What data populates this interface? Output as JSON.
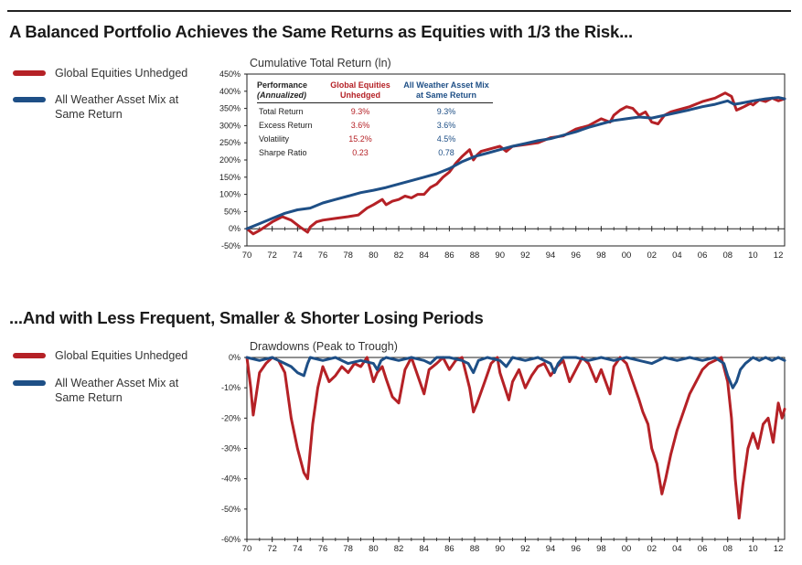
{
  "colors": {
    "equities": "#b52126",
    "allweather": "#1e4f86",
    "axis": "#222222"
  },
  "top": {
    "heading": "A Balanced Portfolio Achieves the Same Returns as Equities with 1/3 the Risk...",
    "legend": [
      "Global Equities Unhedged",
      "All Weather Asset Mix at Same Return"
    ]
  },
  "bottom": {
    "heading": "...And with Less Frequent, Smaller & Shorter Losing Periods",
    "legend": [
      "Global Equities Unhedged",
      "All Weather Asset Mix at Same Return"
    ]
  },
  "perf_table": {
    "headers": [
      "Performance (Annualized)",
      "Global Equities Unhedged",
      "All Weather Asset Mix at Same Return"
    ],
    "header_lines": [
      [
        "Performance",
        "(Annualized)"
      ],
      [
        "Global Equities",
        "Unhedged"
      ],
      [
        "All Weather Asset Mix",
        "at Same Return"
      ]
    ],
    "rows": [
      {
        "label": "Total Return",
        "equities": "9.3%",
        "allweather": "9.3%"
      },
      {
        "label": "Excess Return",
        "equities": "3.6%",
        "allweather": "3.6%"
      },
      {
        "label": "Volatility",
        "equities": "15.2%",
        "allweather": "4.5%"
      },
      {
        "label": "Sharpe Ratio",
        "equities": "0.23",
        "allweather": "0.78"
      }
    ]
  },
  "chart_data": [
    {
      "type": "line",
      "title": "Cumulative Total Return (ln)",
      "xlabel": "",
      "ylabel": "",
      "xlim": [
        1970,
        2012.5
      ],
      "ylim": [
        -50,
        450
      ],
      "yticks": [
        -50,
        0,
        50,
        100,
        150,
        200,
        250,
        300,
        350,
        400,
        450
      ],
      "ytick_labels": [
        "-50%",
        "0%",
        "50%",
        "100%",
        "150%",
        "200%",
        "250%",
        "300%",
        "350%",
        "400%",
        "450%"
      ],
      "xticks": [
        1970,
        1972,
        1974,
        1976,
        1978,
        1980,
        1982,
        1984,
        1986,
        1988,
        1990,
        1992,
        1994,
        1996,
        1998,
        2000,
        2002,
        2004,
        2006,
        2008,
        2010,
        2012
      ],
      "xtick_labels": [
        "70",
        "72",
        "74",
        "76",
        "78",
        "80",
        "82",
        "84",
        "86",
        "88",
        "90",
        "92",
        "94",
        "96",
        "98",
        "00",
        "02",
        "04",
        "06",
        "08",
        "10",
        "12"
      ],
      "series": [
        {
          "name": "Global Equities Unhedged",
          "x": [
            1970,
            1970.5,
            1971,
            1972,
            1972.8,
            1973.5,
            1974.2,
            1974.8,
            1975,
            1975.5,
            1976,
            1977,
            1978,
            1978.8,
            1979.5,
            1980,
            1980.7,
            1981,
            1981.5,
            1982,
            1982.5,
            1983,
            1983.5,
            1984,
            1984.5,
            1985,
            1985.5,
            1986,
            1986.5,
            1987,
            1987.6,
            1987.9,
            1988.2,
            1988.5,
            1989,
            1989.5,
            1990,
            1990.5,
            1991,
            1992,
            1993,
            1994,
            1995,
            1996,
            1997,
            1998,
            1998.7,
            1999,
            1999.5,
            2000,
            2000.5,
            2001,
            2001.5,
            2002,
            2002.5,
            2002.8,
            2003,
            2003.5,
            2004,
            2005,
            2006,
            2007,
            2007.8,
            2008.3,
            2008.7,
            2009,
            2009.3,
            2009.8,
            2010,
            2010.5,
            2011,
            2011.5,
            2012,
            2012.5
          ],
          "values": [
            0,
            -15,
            -5,
            20,
            35,
            25,
            5,
            -10,
            5,
            20,
            25,
            30,
            35,
            40,
            60,
            70,
            85,
            70,
            80,
            85,
            95,
            90,
            100,
            100,
            120,
            130,
            150,
            165,
            190,
            210,
            230,
            200,
            215,
            225,
            230,
            235,
            240,
            225,
            240,
            245,
            250,
            265,
            270,
            290,
            300,
            320,
            310,
            330,
            345,
            355,
            350,
            330,
            340,
            310,
            305,
            320,
            330,
            340,
            345,
            355,
            370,
            380,
            395,
            385,
            345,
            350,
            355,
            365,
            360,
            375,
            370,
            380,
            372,
            378
          ]
        },
        {
          "name": "All Weather Asset Mix at Same Return",
          "x": [
            1970,
            1971,
            1972,
            1973,
            1974,
            1975,
            1976,
            1977,
            1978,
            1979,
            1980,
            1981,
            1982,
            1983,
            1984,
            1985,
            1986,
            1987,
            1988,
            1989,
            1990,
            1991,
            1992,
            1993,
            1994,
            1995,
            1996,
            1997,
            1998,
            1999,
            2000,
            2001,
            2002,
            2003,
            2004,
            2005,
            2006,
            2007,
            2008,
            2008.5,
            2009,
            2010,
            2011,
            2012,
            2012.5
          ],
          "values": [
            0,
            15,
            30,
            45,
            55,
            60,
            75,
            85,
            95,
            105,
            112,
            120,
            130,
            140,
            150,
            160,
            175,
            195,
            210,
            220,
            230,
            240,
            248,
            256,
            262,
            272,
            282,
            295,
            305,
            315,
            320,
            325,
            322,
            330,
            338,
            346,
            355,
            362,
            372,
            362,
            365,
            372,
            378,
            382,
            378
          ]
        }
      ]
    },
    {
      "type": "line",
      "title": "Drawdowns (Peak to Trough)",
      "xlabel": "",
      "ylabel": "",
      "xlim": [
        1970,
        2012.5
      ],
      "ylim": [
        -60,
        0
      ],
      "yticks": [
        0,
        -10,
        -20,
        -30,
        -40,
        -50,
        -60
      ],
      "ytick_labels": [
        "0%",
        "-10%",
        "-20%",
        "-30%",
        "-40%",
        "-50%",
        "-60%"
      ],
      "xticks": [
        1970,
        1972,
        1974,
        1976,
        1978,
        1980,
        1982,
        1984,
        1986,
        1988,
        1990,
        1992,
        1994,
        1996,
        1998,
        2000,
        2002,
        2004,
        2006,
        2008,
        2010,
        2012
      ],
      "xtick_labels": [
        "70",
        "72",
        "74",
        "76",
        "78",
        "80",
        "82",
        "84",
        "86",
        "88",
        "90",
        "92",
        "94",
        "96",
        "98",
        "00",
        "02",
        "04",
        "06",
        "08",
        "10",
        "12"
      ],
      "series": [
        {
          "name": "Global Equities Unhedged",
          "x": [
            1970,
            1970.3,
            1970.5,
            1971,
            1971.5,
            1972,
            1972.5,
            1973,
            1973.5,
            1974,
            1974.5,
            1974.8,
            1975.2,
            1975.6,
            1976,
            1976.5,
            1977,
            1977.5,
            1978,
            1978.5,
            1979,
            1979.5,
            1980,
            1980.3,
            1980.7,
            1981,
            1981.5,
            1982,
            1982.5,
            1983,
            1983.5,
            1984,
            1984.4,
            1985,
            1985.5,
            1986,
            1986.5,
            1987,
            1987.6,
            1987.9,
            1988.2,
            1988.8,
            1989.3,
            1989.8,
            1990,
            1990.7,
            1991,
            1991.5,
            1992,
            1992.5,
            1993,
            1993.5,
            1994,
            1994.5,
            1995,
            1995.5,
            1996,
            1996.5,
            1997,
            1997.6,
            1998,
            1998.7,
            1999,
            1999.5,
            2000,
            2000.5,
            2001,
            2001.3,
            2001.7,
            2002,
            2002.4,
            2002.8,
            2003.1,
            2003.5,
            2004,
            2004.5,
            2005,
            2005.5,
            2006,
            2006.5,
            2007,
            2007.5,
            2008,
            2008.3,
            2008.6,
            2008.9,
            2009.2,
            2009.6,
            2010,
            2010.4,
            2010.8,
            2011.2,
            2011.6,
            2012,
            2012.3,
            2012.5
          ],
          "values": [
            0,
            -10,
            -19,
            -5,
            -2,
            0,
            -1,
            -5,
            -20,
            -30,
            -38,
            -40,
            -22,
            -10,
            -3,
            -8,
            -6,
            -3,
            -5,
            -2,
            -3,
            0,
            -8,
            -5,
            -3,
            -7,
            -13,
            -15,
            -4,
            0,
            -6,
            -12,
            -4,
            -2,
            0,
            -4,
            -1,
            0,
            -10,
            -18,
            -15,
            -8,
            -2,
            0,
            -5,
            -14,
            -8,
            -4,
            -10,
            -6,
            -3,
            -2,
            -6,
            -3,
            -1,
            -8,
            -4,
            0,
            -2,
            -8,
            -4,
            -12,
            -3,
            0,
            -2,
            -8,
            -14,
            -18,
            -22,
            -30,
            -35,
            -45,
            -40,
            -32,
            -24,
            -18,
            -12,
            -8,
            -4,
            -2,
            -1,
            0,
            -8,
            -20,
            -40,
            -53,
            -42,
            -30,
            -25,
            -30,
            -22,
            -20,
            -28,
            -15,
            -20,
            -17
          ]
        },
        {
          "name": "All Weather Asset Mix at Same Return",
          "x": [
            1970,
            1971,
            1972,
            1972.5,
            1973,
            1973.5,
            1974,
            1974.5,
            1974.8,
            1975,
            1976,
            1977,
            1978,
            1979,
            1980,
            1980.3,
            1980.6,
            1981,
            1982,
            1983,
            1984,
            1984.5,
            1985,
            1986,
            1987,
            1987.5,
            1987.9,
            1988.3,
            1989,
            1990,
            1990.5,
            1991,
            1992,
            1993,
            1994,
            1994.3,
            1994.6,
            1995,
            1996,
            1997,
            1998,
            1999,
            2000,
            2001,
            2002,
            2003,
            2004,
            2005,
            2006,
            2007,
            2007.7,
            2008,
            2008.4,
            2008.7,
            2009,
            2009.4,
            2010,
            2010.5,
            2011,
            2011.5,
            2012,
            2012.5
          ],
          "values": [
            0,
            -1,
            0,
            -1,
            -2,
            -3,
            -5,
            -6,
            -2,
            0,
            -1,
            0,
            -2,
            -1,
            -2,
            -4,
            -1,
            0,
            -1,
            0,
            -1,
            -2,
            0,
            0,
            -1,
            -2,
            -5,
            -1,
            0,
            -1,
            -3,
            0,
            -1,
            0,
            -2,
            -5,
            -2,
            0,
            0,
            -1,
            0,
            -1,
            0,
            -1,
            -2,
            0,
            -1,
            0,
            -1,
            0,
            -2,
            -6,
            -10,
            -8,
            -4,
            -2,
            0,
            -1,
            0,
            -1,
            0,
            -1
          ]
        }
      ]
    }
  ]
}
